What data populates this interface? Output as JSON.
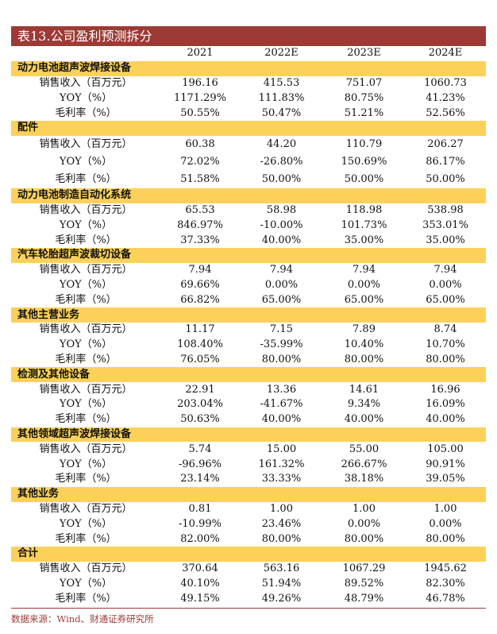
{
  "title": "表13.公司盈利预测拆分",
  "columns": [
    "",
    "2021",
    "2022E",
    "2023E",
    "2024E"
  ],
  "sections": [
    {
      "name": "动力电池超声波焊接设备",
      "rows": [
        {
          "label": "销售收入（百万元）",
          "values": [
            "196.16",
            "415.53",
            "751.07",
            "1060.73"
          ]
        },
        {
          "label": "YOY（%）",
          "values": [
            "1171.29%",
            "111.83%",
            "80.75%",
            "41.23%"
          ]
        },
        {
          "label": "毛利率（%）",
          "values": [
            "50.55%",
            "50.47%",
            "51.21%",
            "52.56%"
          ]
        }
      ]
    },
    {
      "name": "配件",
      "rows": [
        {
          "label": "销售收入（百万元）",
          "values": [
            "60.38",
            "44.20",
            "110.79",
            "206.27"
          ]
        },
        {
          "label": "YOY（%）",
          "values": [
            "72.02%",
            "-26.80%",
            "150.69%",
            "86.17%"
          ]
        },
        {
          "label": "毛利率（%）",
          "values": [
            "51.58%",
            "50.00%",
            "50.00%",
            "50.00%"
          ]
        }
      ]
    },
    {
      "name": "动力电池制造自动化系统",
      "rows": [
        {
          "label": "销售收入（百万元）",
          "values": [
            "65.53",
            "58.98",
            "118.98",
            "538.98"
          ]
        },
        {
          "label": "YOY（%）",
          "values": [
            "846.97%",
            "-10.00%",
            "101.73%",
            "353.01%"
          ]
        },
        {
          "label": "毛利率（%）",
          "values": [
            "37.33%",
            "40.00%",
            "35.00%",
            "35.00%"
          ]
        }
      ]
    },
    {
      "name": "汽车轮胎超声波裁切设备",
      "rows": [
        {
          "label": "销售收入（百万元）",
          "values": [
            "7.94",
            "7.94",
            "7.94",
            "7.94"
          ]
        },
        {
          "label": "YOY（%）",
          "values": [
            "69.66%",
            "0.00%",
            "0.00%",
            "0.00%"
          ]
        },
        {
          "label": "毛利率（%）",
          "values": [
            "66.82%",
            "65.00%",
            "65.00%",
            "65.00%"
          ]
        }
      ]
    },
    {
      "name": "其他主营业务",
      "rows": [
        {
          "label": "销售收入（百万元）",
          "values": [
            "11.17",
            "7.15",
            "7.89",
            "8.74"
          ]
        },
        {
          "label": "YOY（%）",
          "values": [
            "108.40%",
            "-35.99%",
            "10.40%",
            "10.70%"
          ]
        },
        {
          "label": "毛利率（%）",
          "values": [
            "76.05%",
            "80.00%",
            "80.00%",
            "80.00%"
          ]
        }
      ]
    },
    {
      "name": "检测及其他设备",
      "rows": [
        {
          "label": "销售收入（百万元）",
          "values": [
            "22.91",
            "13.36",
            "14.61",
            "16.96"
          ]
        },
        {
          "label": "YOY（%）",
          "values": [
            "203.04%",
            "-41.67%",
            "9.34%",
            "16.09%"
          ]
        },
        {
          "label": "毛利率（%）",
          "values": [
            "50.63%",
            "40.00%",
            "40.00%",
            "40.00%"
          ]
        }
      ]
    },
    {
      "name": "其他领域超声波焊接设备",
      "rows": [
        {
          "label": "销售收入（百万元）",
          "values": [
            "5.74",
            "15.00",
            "55.00",
            "105.00"
          ]
        },
        {
          "label": "YOY（%）",
          "values": [
            "-96.96%",
            "161.32%",
            "266.67%",
            "90.91%"
          ]
        },
        {
          "label": "毛利率（%）",
          "values": [
            "23.14%",
            "33.33%",
            "38.18%",
            "39.05%"
          ]
        }
      ]
    },
    {
      "name": "其他业务",
      "rows": [
        {
          "label": "销售收入（百万元）",
          "values": [
            "0.81",
            "1.00",
            "1.00",
            "1.00"
          ]
        },
        {
          "label": "YOY（%）",
          "values": [
            "-10.99%",
            "23.46%",
            "0.00%",
            "0.00%"
          ]
        },
        {
          "label": "毛利率（%）",
          "values": [
            "82.00%",
            "80.00%",
            "80.00%",
            "80.00%"
          ]
        }
      ]
    },
    {
      "name": "合计",
      "rows": [
        {
          "label": "销售收入（百万元）",
          "values": [
            "370.64",
            "563.16",
            "1067.29",
            "1945.62"
          ]
        },
        {
          "label": "YOY（%）",
          "values": [
            "40.10%",
            "51.94%",
            "89.52%",
            "82.30%"
          ]
        },
        {
          "label": "毛利率（%）",
          "values": [
            "49.15%",
            "49.26%",
            "48.79%",
            "46.78%"
          ]
        }
      ]
    }
  ],
  "source": "数据来源：Wind、财通证券研究所",
  "colors": {
    "title_bg": "#9c3a36",
    "section_bg": "#fbd15a"
  }
}
